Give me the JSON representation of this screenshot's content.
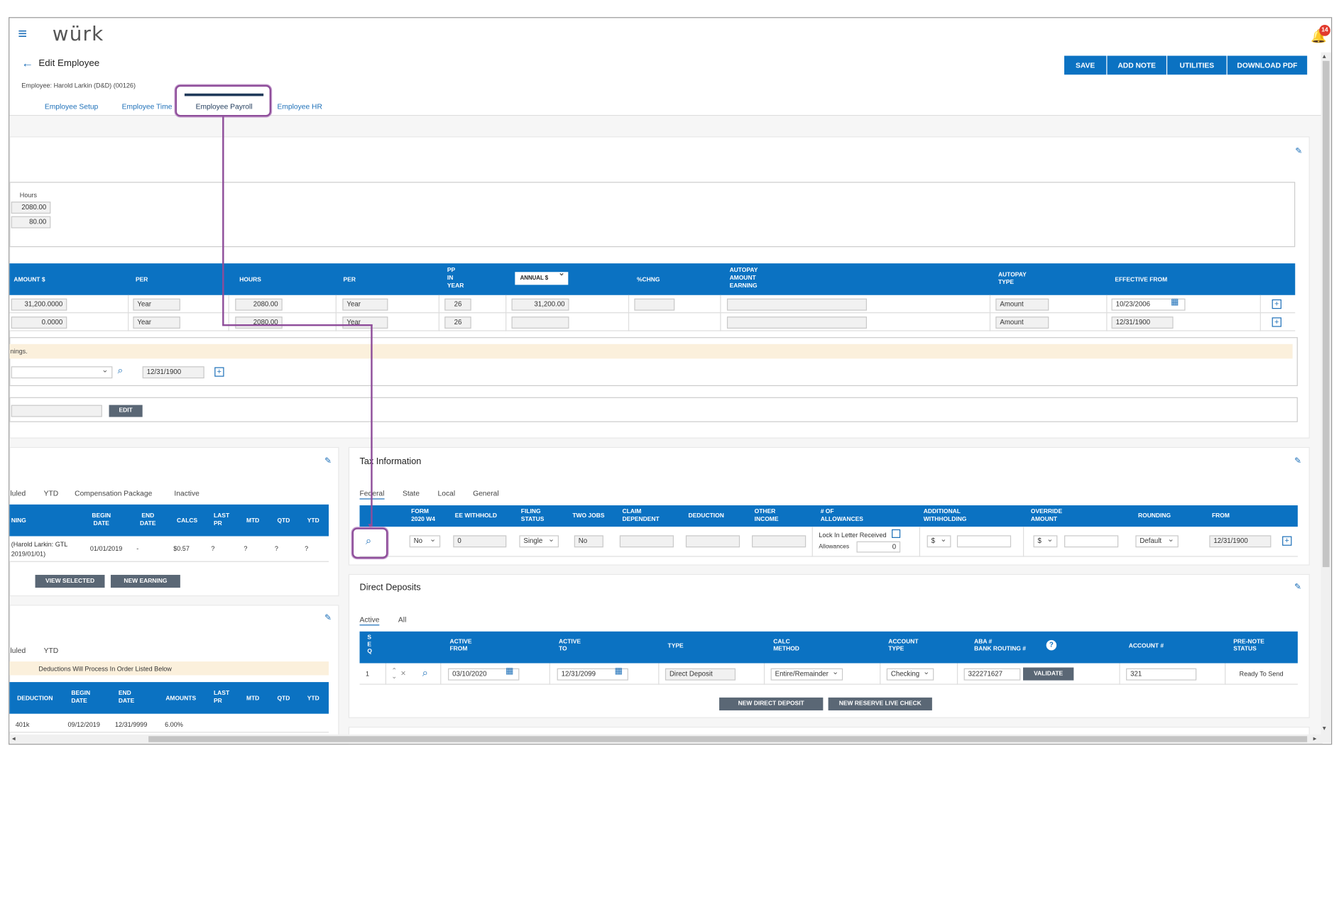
{
  "app": {
    "logo": "würk",
    "notification_count": "14",
    "page_title": "Edit Employee",
    "employee_line": "Employee: Harold Larkin (D&D) (00126)"
  },
  "toolbar": {
    "save": "SAVE",
    "add_note": "ADD NOTE",
    "utilities": "UTILITIES",
    "download_pdf": "DOWNLOAD PDF"
  },
  "tabs": [
    "Employee Setup",
    "Employee Time",
    "Employee Payroll",
    "Employee HR"
  ],
  "hours_box": {
    "label": "Hours",
    "values": [
      "2080.00",
      "80.00"
    ]
  },
  "pay_table": {
    "headers": [
      "AMOUNT $",
      "PER",
      "HOURS",
      "PER",
      "PP\nIN\nYEAR",
      "ANNUAL $",
      "%CHNG",
      "AUTOPAY\nAMOUNT\nEARNING",
      "AUTOPAY\nTYPE",
      "EFFECTIVE FROM"
    ],
    "rows": [
      {
        "amount": "31,200.0000",
        "per": "Year",
        "hours": "2080.00",
        "per2": "Year",
        "pp": "26",
        "annual": "31,200.00",
        "chng": "",
        "autopay_earning": "",
        "autopay_type": "Amount",
        "effective": "10/23/2006"
      },
      {
        "amount": "0.0000",
        "per": "Year",
        "hours": "2080.00",
        "per2": "Year",
        "pp": "26",
        "annual": "",
        "chng": "",
        "autopay_earning": "",
        "autopay_type": "Amount",
        "effective": "12/31/1900"
      }
    ]
  },
  "notice": {
    "text": "nings.",
    "date": "12/31/1900",
    "edit_button": "EDIT"
  },
  "earnings_panel": {
    "tabs": [
      "luled",
      "YTD",
      "Compensation Package",
      "Inactive"
    ],
    "headers": [
      "NING",
      "BEGIN\nDATE",
      "END\nDATE",
      "CALCS",
      "LAST\nPR",
      "MTD",
      "QTD",
      "YTD"
    ],
    "row": {
      "name": "(Harold Larkin: GTL\n2019/01/01)",
      "begin": "01/01/2019",
      "end": "-",
      "calcs": "$0.57",
      "last_pr": "?",
      "mtd": "?",
      "qtd": "?",
      "ytd": "?"
    },
    "view_selected": "VIEW SELECTED",
    "new_earning": "NEW EARNING"
  },
  "deductions_panel": {
    "tabs": [
      "luled",
      "YTD"
    ],
    "note": "Deductions Will Process In Order Listed Below",
    "headers": [
      "DEDUCTION",
      "BEGIN\nDATE",
      "END\nDATE",
      "AMOUNTS",
      "LAST\nPR",
      "MTD",
      "QTD",
      "YTD"
    ],
    "row": {
      "name": "401k",
      "begin": "09/12/2019",
      "end": "12/31/9999",
      "amount": "6.00%"
    }
  },
  "tax_panel": {
    "title": "Tax Information",
    "tabs": [
      "Federal",
      "State",
      "Local",
      "General"
    ],
    "headers": [
      "FORM\n2020 W4",
      "EE WITHHOLD",
      "FILING\nSTATUS",
      "TWO JOBS",
      "CLAIM\nDEPENDENT",
      "DEDUCTION",
      "OTHER\nINCOME",
      "# OF\nALLOWANCES",
      "ADDITIONAL\nWITHHOLDING",
      "OVERRIDE\nAMOUNT",
      "ROUNDING",
      "FROM"
    ],
    "row": {
      "form_w4": "No",
      "ee_withhold": "0",
      "filing_status": "Single",
      "two_jobs": "No",
      "lock_in_letter": "Lock In Letter Received",
      "allowances_label": "Allowances",
      "allowances": "0",
      "add_currency": "$",
      "override_currency": "$",
      "rounding": "Default",
      "from": "12/31/1900"
    }
  },
  "deposits_panel": {
    "title": "Direct Deposits",
    "tabs": [
      "Active",
      "All"
    ],
    "headers": [
      "S\nE\nQ",
      "ACTIVE\nFROM",
      "ACTIVE\nTO",
      "TYPE",
      "CALC\nMETHOD",
      "ACCOUNT\nTYPE",
      "ABA #\nBANK ROUTING #",
      "ACCOUNT #",
      "PRE-NOTE\nSTATUS"
    ],
    "row": {
      "seq": "1",
      "active_from": "03/10/2020",
      "active_to": "12/31/2099",
      "type": "Direct Deposit",
      "calc_method": "Entire/Remainder",
      "account_type": "Checking",
      "routing": "322271627",
      "validate": "VALIDATE",
      "account": "321",
      "prenote_status": "Ready To Send"
    },
    "new_direct_deposit": "NEW DIRECT DEPOSIT",
    "new_reserve_live_check": "NEW RESERVE LIVE CHECK"
  },
  "colors": {
    "accent": "#0b72c2",
    "highlight": "#8e4d9a",
    "notice": "#fbf0dc"
  }
}
